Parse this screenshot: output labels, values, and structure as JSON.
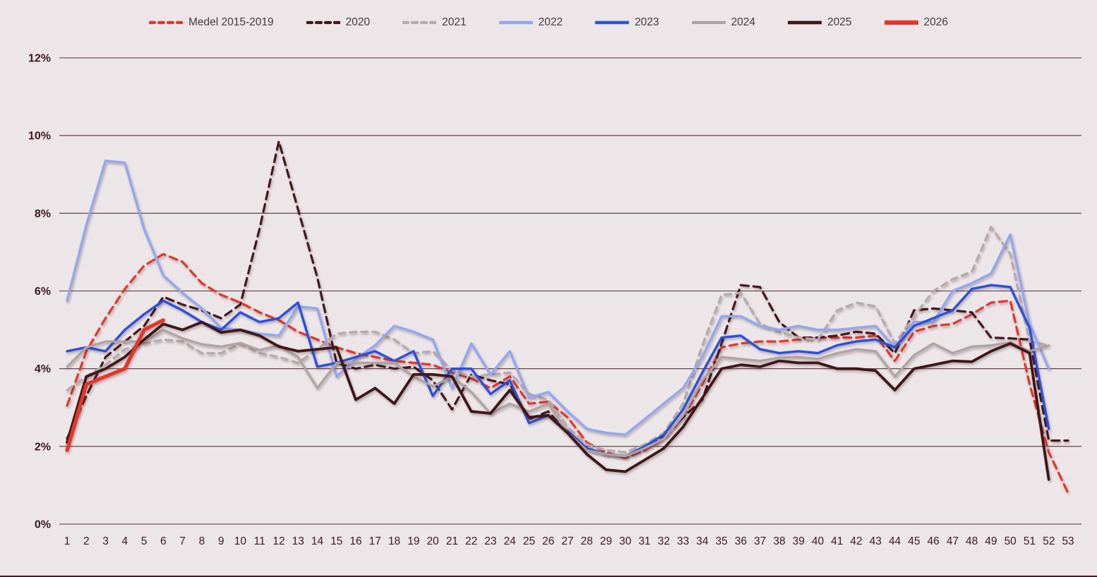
{
  "page": {
    "kind": "weekly percentage line chart",
    "background_color": "#ece6e8",
    "gridline_color": "#593039",
    "axis_label_color": "#3d1820",
    "legend_text_color": "#3d3d3d"
  },
  "chart_data": {
    "type": "line",
    "title": "",
    "xlabel": "",
    "ylabel": "",
    "legend_position": "top-center",
    "grid": "horizontal",
    "ylim": [
      0,
      12.4
    ],
    "y_ticks": [
      "0%",
      "2%",
      "4%",
      "6%",
      "8%",
      "10%",
      "12%"
    ],
    "y_tick_values": [
      0,
      2,
      4,
      6,
      8,
      10,
      12
    ],
    "x": [
      1,
      2,
      3,
      4,
      5,
      6,
      7,
      8,
      9,
      10,
      11,
      12,
      13,
      14,
      15,
      16,
      17,
      18,
      19,
      20,
      21,
      22,
      23,
      24,
      25,
      26,
      27,
      28,
      29,
      30,
      31,
      32,
      33,
      34,
      35,
      36,
      37,
      38,
      39,
      40,
      41,
      42,
      43,
      44,
      45,
      46,
      47,
      48,
      49,
      50,
      51,
      52,
      53
    ],
    "series": [
      {
        "name": "Medel 2015-2019",
        "color": "#e5352c",
        "dash": "11 7",
        "width": 3.2,
        "values": [
          3.05,
          4.45,
          5.3,
          6.05,
          6.65,
          6.95,
          6.75,
          6.2,
          5.9,
          5.7,
          5.45,
          5.25,
          4.95,
          4.75,
          4.55,
          4.4,
          4.3,
          4.2,
          4.15,
          4.1,
          3.9,
          3.75,
          3.5,
          3.8,
          3.1,
          3.15,
          2.75,
          2.1,
          1.85,
          1.7,
          1.9,
          2.2,
          2.75,
          3.6,
          4.55,
          4.65,
          4.7,
          4.7,
          4.75,
          4.8,
          4.8,
          4.8,
          4.85,
          4.2,
          4.95,
          5.1,
          5.15,
          5.4,
          5.7,
          5.75,
          3.6,
          1.85,
          0.8
        ]
      },
      {
        "name": "2020",
        "color": "#44131b",
        "dash": "11 7",
        "width": 3.2,
        "values": [
          2.2,
          3.3,
          4.3,
          4.7,
          5.1,
          5.85,
          5.65,
          5.5,
          5.3,
          5.65,
          7.6,
          9.85,
          8.1,
          6.35,
          4.15,
          4.0,
          4.1,
          4.0,
          4.05,
          3.7,
          2.95,
          3.85,
          3.7,
          3.6,
          2.7,
          2.9,
          2.35,
          1.95,
          1.8,
          1.75,
          1.95,
          2.25,
          2.75,
          3.2,
          4.65,
          6.15,
          6.1,
          5.2,
          4.8,
          4.8,
          4.85,
          4.95,
          4.9,
          4.4,
          5.5,
          5.55,
          5.5,
          5.45,
          4.8,
          4.78,
          4.75,
          2.15,
          2.15
        ]
      },
      {
        "name": "2021",
        "color": "#b7a9ad",
        "dash": "9 7",
        "width": 3.2,
        "values": [
          3.45,
          3.8,
          4.1,
          4.5,
          4.65,
          4.75,
          4.7,
          4.4,
          4.4,
          4.65,
          4.4,
          4.3,
          4.15,
          4.5,
          4.9,
          4.95,
          4.95,
          4.75,
          4.4,
          4.45,
          3.95,
          3.8,
          3.85,
          3.9,
          3.35,
          3.2,
          2.5,
          2.05,
          1.9,
          1.85,
          2.05,
          2.35,
          3.1,
          4.6,
          5.9,
          5.95,
          5.15,
          4.95,
          4.8,
          4.75,
          5.5,
          5.7,
          5.6,
          4.65,
          5.35,
          6.0,
          6.3,
          6.5,
          7.65,
          6.95,
          4.7,
          4.6,
          null
        ]
      },
      {
        "name": "2022",
        "color": "#92a7ef",
        "dash": null,
        "width": 3.4,
        "values": [
          5.75,
          7.7,
          9.35,
          9.3,
          7.6,
          6.4,
          5.95,
          5.55,
          5.05,
          5.0,
          4.9,
          4.85,
          5.6,
          5.55,
          3.8,
          4.25,
          4.6,
          5.1,
          4.95,
          4.75,
          3.5,
          4.65,
          3.85,
          4.45,
          3.25,
          3.4,
          2.9,
          2.45,
          2.35,
          2.3,
          2.7,
          3.1,
          3.5,
          4.3,
          5.35,
          5.35,
          5.1,
          5.0,
          5.1,
          5.0,
          5.0,
          5.05,
          5.1,
          4.55,
          5.2,
          5.2,
          6.0,
          6.2,
          6.45,
          7.45,
          5.15,
          4.0,
          null
        ]
      },
      {
        "name": "2023",
        "color": "#2a50df",
        "dash": null,
        "width": 3.4,
        "values": [
          4.45,
          4.55,
          4.45,
          5.0,
          5.4,
          5.75,
          5.5,
          5.2,
          5.0,
          5.45,
          5.2,
          5.3,
          5.7,
          4.05,
          4.15,
          4.3,
          4.45,
          4.2,
          4.45,
          3.3,
          4.0,
          4.0,
          3.35,
          3.7,
          2.6,
          2.8,
          2.4,
          1.95,
          1.8,
          1.75,
          2.0,
          2.3,
          2.95,
          3.9,
          4.8,
          4.85,
          4.5,
          4.4,
          4.45,
          4.4,
          4.6,
          4.7,
          4.75,
          4.55,
          5.1,
          5.3,
          5.5,
          6.05,
          6.15,
          6.1,
          5.05,
          2.45,
          null
        ]
      },
      {
        "name": "2024",
        "color": "#b0a2a3",
        "dash": null,
        "width": 3.2,
        "values": [
          4.05,
          4.55,
          4.7,
          4.7,
          4.7,
          5.0,
          4.78,
          4.63,
          4.57,
          4.66,
          4.48,
          4.6,
          4.3,
          3.5,
          4.15,
          4.15,
          4.15,
          4.15,
          3.8,
          3.55,
          3.8,
          3.4,
          2.85,
          3.1,
          2.9,
          3.1,
          2.35,
          1.9,
          1.8,
          1.75,
          1.95,
          2.2,
          2.8,
          3.7,
          4.3,
          4.25,
          4.2,
          4.28,
          4.3,
          4.25,
          4.4,
          4.5,
          4.45,
          3.8,
          4.35,
          4.65,
          4.4,
          4.57,
          4.6,
          4.68,
          4.45,
          4.6,
          null
        ]
      },
      {
        "name": "2025",
        "color": "#3f1219",
        "dash": null,
        "width": 3.8,
        "values": [
          2.1,
          3.8,
          4.0,
          4.3,
          4.75,
          5.15,
          5.0,
          5.2,
          4.93,
          5.0,
          4.85,
          4.57,
          4.45,
          4.5,
          4.55,
          3.2,
          3.5,
          3.1,
          3.85,
          3.85,
          3.8,
          2.9,
          2.85,
          3.45,
          2.75,
          2.8,
          2.35,
          1.8,
          1.4,
          1.35,
          1.65,
          1.95,
          2.5,
          3.25,
          4.0,
          4.1,
          4.05,
          4.2,
          4.15,
          4.15,
          4.0,
          4.0,
          3.95,
          3.45,
          4.0,
          4.1,
          4.2,
          4.18,
          4.45,
          4.65,
          4.4,
          1.15,
          null
        ]
      },
      {
        "name": "2026",
        "color": "#e5352c",
        "dash": null,
        "width": 5.2,
        "values": [
          1.9,
          3.6,
          3.8,
          4.0,
          5.0,
          5.25,
          null,
          null,
          null,
          null,
          null,
          null,
          null,
          null,
          null,
          null,
          null,
          null,
          null,
          null,
          null,
          null,
          null,
          null,
          null,
          null,
          null,
          null,
          null,
          null,
          null,
          null,
          null,
          null,
          null,
          null,
          null,
          null,
          null,
          null,
          null,
          null,
          null,
          null,
          null,
          null,
          null,
          null,
          null,
          null,
          null,
          null,
          null
        ]
      }
    ]
  }
}
